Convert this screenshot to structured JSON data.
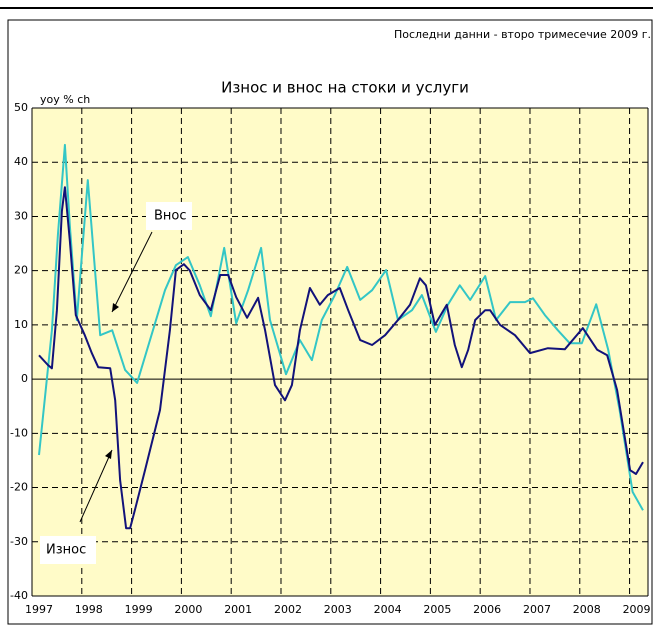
{
  "chart_data": {
    "type": "line",
    "title": "Износ и внос на стоки и услуги",
    "subtitle": "Последни данни - второ тримесечие 2009 г.",
    "y_label": "yoy % ch",
    "annotations": [
      {
        "text": "Внос"
      },
      {
        "text": "Износ"
      }
    ],
    "xlim": [
      1997,
      2009.37
    ],
    "xticks": [
      1997,
      1998,
      1999,
      2000,
      2001,
      2002,
      2003,
      2004,
      2005,
      2006,
      2007,
      2008,
      2009
    ],
    "ylim": [
      -40,
      50
    ],
    "yticks": [
      -40,
      -30,
      -20,
      -10,
      0,
      10,
      20,
      30,
      40,
      50
    ],
    "grid": true,
    "background": "#fffbc8",
    "series": [
      {
        "name": "Износ",
        "color": "#12127a",
        "x": [
          1997.14,
          1997.32,
          1997.4,
          1997.5,
          1997.6,
          1997.66,
          1997.76,
          1997.88,
          1998.06,
          1998.2,
          1998.33,
          1998.57,
          1998.67,
          1998.77,
          1998.89,
          1998.97,
          1999.07,
          1999.27,
          1999.57,
          1999.77,
          1999.89,
          2000.05,
          2000.17,
          2000.37,
          2000.59,
          2000.78,
          2000.94,
          2001.1,
          2001.32,
          2001.54,
          2001.68,
          2001.88,
          2002.08,
          2002.22,
          2002.38,
          2002.58,
          2002.78,
          2002.94,
          2003.18,
          2003.35,
          2003.59,
          2003.83,
          2004.09,
          2004.35,
          2004.59,
          2004.79,
          2004.91,
          2005.09,
          2005.33,
          2005.49,
          2005.63,
          2005.76,
          2005.9,
          2006.1,
          2006.2,
          2006.4,
          2006.7,
          2007.0,
          2007.36,
          2007.7,
          2008.06,
          2008.35,
          2008.55,
          2008.75,
          2009.01,
          2009.13,
          2009.27
        ],
        "values": [
          4.4,
          2.6,
          2,
          12.7,
          31,
          35.4,
          25.6,
          11.8,
          8.1,
          4.8,
          2.2,
          2,
          -3.9,
          -18.6,
          -27.5,
          -27.5,
          -24,
          -16.8,
          -5.7,
          9,
          20.1,
          21.2,
          20,
          15.5,
          12.7,
          19.2,
          19.2,
          15.1,
          11.3,
          15,
          9,
          -1.1,
          -3.9,
          -1.1,
          9,
          16.8,
          13.7,
          15.5,
          16.8,
          12.7,
          7.2,
          6.3,
          8.1,
          10.9,
          13.7,
          18.6,
          17.3,
          10,
          13.7,
          6.3,
          2.2,
          5.4,
          10.9,
          12.7,
          12.7,
          10,
          8.1,
          4.8,
          5.7,
          5.5,
          9.4,
          5.4,
          4.4,
          -2,
          -16.8,
          -17.5,
          -15.3
        ]
      },
      {
        "name": "Внос",
        "color": "#33c6c6",
        "x": [
          1997.14,
          1997.4,
          1997.52,
          1997.66,
          1997.76,
          1997.9,
          1998.12,
          1998.37,
          1998.61,
          1998.87,
          1999.11,
          1999.67,
          1999.89,
          2000.13,
          2000.37,
          2000.59,
          2000.86,
          2001.1,
          2001.34,
          2001.6,
          2001.78,
          2002.1,
          2002.38,
          2002.62,
          2002.82,
          2003.08,
          2003.33,
          2003.59,
          2003.83,
          2004.11,
          2004.35,
          2004.63,
          2004.83,
          2005.11,
          2005.35,
          2005.59,
          2005.8,
          2006.1,
          2006.32,
          2006.6,
          2006.9,
          2007.06,
          2007.3,
          2007.56,
          2007.8,
          2008.04,
          2008.33,
          2008.57,
          2008.8,
          2009.06,
          2009.27
        ],
        "values": [
          -14,
          9,
          26.6,
          43.2,
          28.4,
          10.9,
          36.7,
          8.1,
          9,
          1.7,
          -0.7,
          16.4,
          21,
          22.5,
          17.3,
          11.6,
          24.2,
          10.3,
          16.4,
          24.2,
          10.9,
          0.9,
          7.2,
          3.5,
          10.9,
          15.5,
          20.7,
          14.6,
          16.4,
          20.1,
          10.9,
          12.7,
          15.5,
          8.7,
          13.7,
          17.3,
          14.6,
          19,
          10.9,
          14.2,
          14.2,
          14.9,
          11.8,
          9,
          6.6,
          6.6,
          13.8,
          5.4,
          -5.7,
          -20.8,
          -24.2
        ]
      }
    ]
  }
}
